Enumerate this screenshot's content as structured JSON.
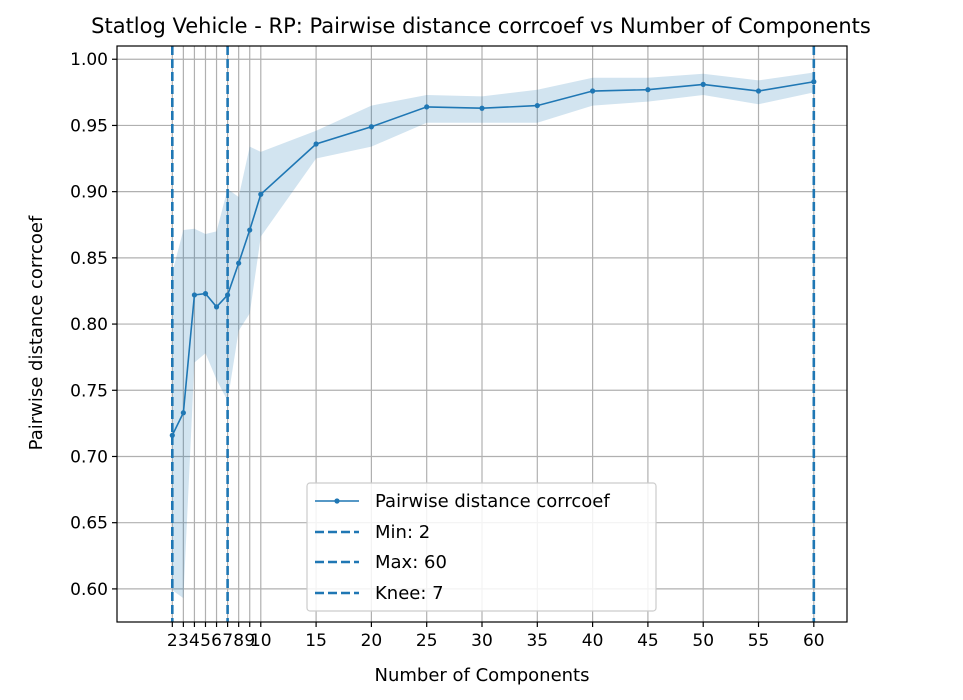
{
  "chart_data": {
    "type": "line",
    "title": "Statlog Vehicle - RP: Pairwise distance corrcoef vs Number of Components",
    "xlabel": "Number of Components",
    "ylabel": "Pairwise distance corrcoef",
    "xlim": [
      -3,
      63
    ],
    "ylim": [
      0.575,
      1.01
    ],
    "x_ticks": [
      2,
      3,
      4,
      5,
      6,
      7,
      8,
      9,
      10,
      15,
      20,
      25,
      30,
      35,
      40,
      45,
      50,
      55,
      60
    ],
    "y_ticks": [
      0.6,
      0.65,
      0.7,
      0.75,
      0.8,
      0.85,
      0.9,
      0.95,
      1.0
    ],
    "y_tick_labels": [
      "0.60",
      "0.65",
      "0.70",
      "0.75",
      "0.80",
      "0.85",
      "0.90",
      "0.95",
      "1.00"
    ],
    "grid": true,
    "colors": {
      "series": "#1f77b4",
      "band": "#1f77b4",
      "grid": "#b0b0b0"
    },
    "series": [
      {
        "name": "Pairwise distance corrcoef",
        "x": [
          2,
          3,
          4,
          5,
          6,
          7,
          8,
          9,
          10,
          15,
          20,
          25,
          30,
          35,
          40,
          45,
          50,
          55,
          60
        ],
        "y": [
          0.716,
          0.733,
          0.822,
          0.823,
          0.813,
          0.822,
          0.846,
          0.871,
          0.898,
          0.936,
          0.949,
          0.964,
          0.963,
          0.965,
          0.976,
          0.977,
          0.981,
          0.976,
          0.983
        ],
        "lower": [
          0.599,
          0.593,
          0.771,
          0.778,
          0.758,
          0.742,
          0.795,
          0.808,
          0.866,
          0.925,
          0.934,
          0.952,
          0.952,
          0.952,
          0.965,
          0.968,
          0.973,
          0.966,
          0.975
        ],
        "upper": [
          0.839,
          0.871,
          0.872,
          0.868,
          0.87,
          0.902,
          0.896,
          0.934,
          0.93,
          0.946,
          0.965,
          0.973,
          0.972,
          0.977,
          0.986,
          0.986,
          0.989,
          0.984,
          0.99
        ]
      }
    ],
    "vlines": [
      {
        "name": "Min: 2",
        "x": 2
      },
      {
        "name": "Max: 60",
        "x": 60
      },
      {
        "name": "Knee: 7",
        "x": 7
      }
    ],
    "legend": {
      "position": "lower center",
      "entries": [
        "Pairwise distance corrcoef",
        "Min: 2",
        "Max: 60",
        "Knee: 7"
      ]
    }
  }
}
